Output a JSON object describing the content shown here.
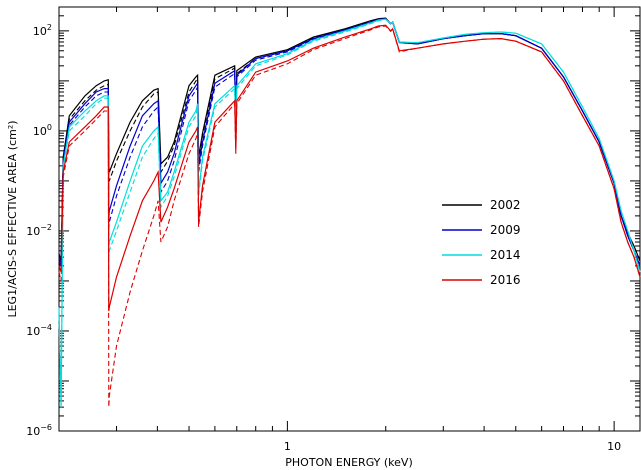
{
  "chart_data": {
    "type": "line",
    "title": "",
    "xlabel": "PHOTON ENERGY (keV)",
    "ylabel": "LEG1/ACIS-S EFFECTIVE AREA (cm²)",
    "xscale": "log",
    "yscale": "log",
    "xlim": [
      0.2,
      12
    ],
    "ylim": [
      1e-06,
      300
    ],
    "x_ticks": [
      {
        "value": 1,
        "label": "1"
      },
      {
        "value": 10,
        "label": "10"
      }
    ],
    "y_ticks": [
      {
        "value": 1e-06,
        "base": "10",
        "exp": "−6"
      },
      {
        "value": 0.0001,
        "base": "10",
        "exp": "−4"
      },
      {
        "value": 0.01,
        "base": "10",
        "exp": "−2"
      },
      {
        "value": 1,
        "base": "10",
        "exp": "0"
      },
      {
        "value": 100,
        "base": "10",
        "exp": "2"
      }
    ],
    "grid": false,
    "legend_position": "center-right",
    "x": [
      0.2,
      0.203,
      0.206,
      0.215,
      0.24,
      0.26,
      0.275,
      0.283,
      0.284,
      0.285,
      0.3,
      0.33,
      0.36,
      0.39,
      0.402,
      0.41,
      0.43,
      0.45,
      0.5,
      0.525,
      0.531,
      0.535,
      0.55,
      0.6,
      0.69,
      0.695,
      0.7,
      0.8,
      1.0,
      1.2,
      1.5,
      1.8,
      1.9,
      2.0,
      2.07,
      2.1,
      2.2,
      2.5,
      3.0,
      3.5,
      4.0,
      4.5,
      5.0,
      6.0,
      7.0,
      8.0,
      9.0,
      10.0,
      10.5,
      11.0,
      11.5,
      12.0
    ],
    "series": [
      {
        "name": "2002",
        "color": "#000000",
        "values": [
          0.0035,
          0.0025,
          0.3,
          2.0,
          5.0,
          8.0,
          10.0,
          10.5,
          0.2,
          0.15,
          0.35,
          1.5,
          4.0,
          6.5,
          7.0,
          0.22,
          0.3,
          0.6,
          8.0,
          12.0,
          13.0,
          0.3,
          0.9,
          13.0,
          20.0,
          1.8,
          16.0,
          30.0,
          42.0,
          75.0,
          110.0,
          160.0,
          175.0,
          180.0,
          140.0,
          150.0,
          60.0,
          55.0,
          70.0,
          80.0,
          88.0,
          88.0,
          80.0,
          45.0,
          12.0,
          2.5,
          0.6,
          0.09,
          0.02,
          0.009,
          0.005,
          0.0025
        ]
      },
      {
        "name": "2009",
        "color": "#0000cc",
        "values": [
          0.003,
          0.002,
          0.25,
          1.5,
          3.5,
          6.0,
          7.0,
          7.0,
          0.015,
          0.025,
          0.08,
          0.5,
          2.0,
          3.5,
          4.0,
          0.09,
          0.15,
          0.35,
          5.0,
          8.0,
          9.0,
          0.2,
          0.6,
          9.0,
          16.0,
          1.5,
          13.0,
          28.0,
          40.0,
          70.0,
          105.0,
          150.0,
          170.0,
          175.0,
          140.0,
          150.0,
          60.0,
          55.0,
          70.0,
          80.0,
          88.0,
          88.0,
          80.0,
          45.0,
          12.0,
          2.5,
          0.6,
          0.09,
          0.02,
          0.008,
          0.004,
          0.002
        ]
      },
      {
        "name": "2014",
        "color": "#00dddd",
        "values": [
          0.0003,
          3e-06,
          0.2,
          1.2,
          2.5,
          4.0,
          5.0,
          5.0,
          0.005,
          0.006,
          0.015,
          0.1,
          0.5,
          1.0,
          1.2,
          0.04,
          0.06,
          0.15,
          1.5,
          2.5,
          3.5,
          0.06,
          0.3,
          3.5,
          8.0,
          0.8,
          8.0,
          22.0,
          35.0,
          65.0,
          100.0,
          145.0,
          165.0,
          172.0,
          140.0,
          150.0,
          60.0,
          58.0,
          72.0,
          85.0,
          92.0,
          95.0,
          90.0,
          55.0,
          15.0,
          3.0,
          0.7,
          0.1,
          0.025,
          0.01,
          0.004,
          0.0015
        ]
      },
      {
        "name": "2016",
        "color": "#dd0000",
        "values": [
          0.002,
          0.0015,
          0.15,
          0.6,
          1.2,
          2.0,
          3.0,
          3.0,
          0.00025,
          0.0003,
          0.0012,
          0.008,
          0.04,
          0.1,
          0.15,
          0.015,
          0.03,
          0.07,
          0.6,
          1.0,
          1.2,
          0.015,
          0.08,
          1.5,
          4.0,
          0.4,
          4.0,
          15.0,
          25.0,
          45.0,
          75.0,
          110.0,
          125.0,
          130.0,
          100.0,
          110.0,
          40.0,
          45.0,
          55.0,
          62.0,
          68.0,
          70.0,
          62.0,
          38.0,
          10.0,
          2.0,
          0.5,
          0.07,
          0.015,
          0.006,
          0.003,
          0.0012
        ]
      }
    ],
    "dashed_variants": [
      {
        "of": "2002",
        "color": "#000000",
        "values": [
          0.003,
          0.002,
          0.28,
          1.7,
          4.0,
          6.5,
          8.0,
          8.5,
          0.1,
          0.1,
          0.25,
          1.0,
          3.0,
          5.5,
          6.0,
          0.15,
          0.25,
          0.5,
          6.0,
          10.0,
          11.0,
          0.25,
          0.8,
          11.0,
          18.0,
          1.6,
          14.0,
          28.0,
          40.0,
          72.0,
          105.0,
          155.0,
          170.0,
          175.0,
          138.0,
          148.0,
          58.0,
          55.0,
          70.0,
          80.0,
          88.0,
          88.0,
          80.0,
          45.0,
          12.0,
          2.5,
          0.6,
          0.09,
          0.02,
          0.009,
          0.005,
          0.0025
        ]
      },
      {
        "of": "2009",
        "color": "#0000cc",
        "values": [
          0.0025,
          0.0018,
          0.22,
          1.3,
          3.0,
          5.0,
          6.0,
          6.0,
          0.01,
          0.015,
          0.05,
          0.3,
          1.2,
          2.5,
          3.0,
          0.06,
          0.1,
          0.25,
          4.0,
          6.5,
          7.5,
          0.15,
          0.5,
          7.5,
          14.0,
          1.3,
          12.0,
          26.0,
          38.0,
          68.0,
          100.0,
          145.0,
          165.0,
          172.0,
          138.0,
          148.0,
          58.0,
          55.0,
          70.0,
          80.0,
          88.0,
          88.0,
          80.0,
          45.0,
          12.0,
          2.5,
          0.6,
          0.09,
          0.02,
          0.008,
          0.004,
          0.002
        ]
      },
      {
        "of": "2014",
        "color": "#00dddd",
        "values": [
          0.0002,
          3e-06,
          0.18,
          1.0,
          2.0,
          3.5,
          4.5,
          4.5,
          0.003,
          0.004,
          0.01,
          0.06,
          0.3,
          0.7,
          0.9,
          0.03,
          0.05,
          0.12,
          1.2,
          2.0,
          3.0,
          0.05,
          0.25,
          3.0,
          7.0,
          0.7,
          7.0,
          20.0,
          33.0,
          62.0,
          95.0,
          140.0,
          160.0,
          170.0,
          138.0,
          148.0,
          58.0,
          58.0,
          72.0,
          85.0,
          92.0,
          95.0,
          90.0,
          55.0,
          15.0,
          3.0,
          0.7,
          0.1,
          0.025,
          0.01,
          0.004,
          0.0015
        ]
      },
      {
        "of": "2016",
        "color": "#dd0000",
        "values": [
          0.0015,
          0.001,
          0.12,
          0.5,
          1.0,
          1.7,
          2.5,
          2.5,
          3e-06,
          5e-06,
          5e-05,
          0.0006,
          0.004,
          0.02,
          0.04,
          0.006,
          0.012,
          0.04,
          0.35,
          0.7,
          0.9,
          0.012,
          0.06,
          1.2,
          3.5,
          0.35,
          3.5,
          13.0,
          22.0,
          42.0,
          70.0,
          105.0,
          120.0,
          125.0,
          98.0,
          108.0,
          38.0,
          45.0,
          55.0,
          62.0,
          68.0,
          70.0,
          62.0,
          38.0,
          10.0,
          2.0,
          0.5,
          0.07,
          0.015,
          0.006,
          0.003,
          0.0012
        ]
      }
    ]
  }
}
